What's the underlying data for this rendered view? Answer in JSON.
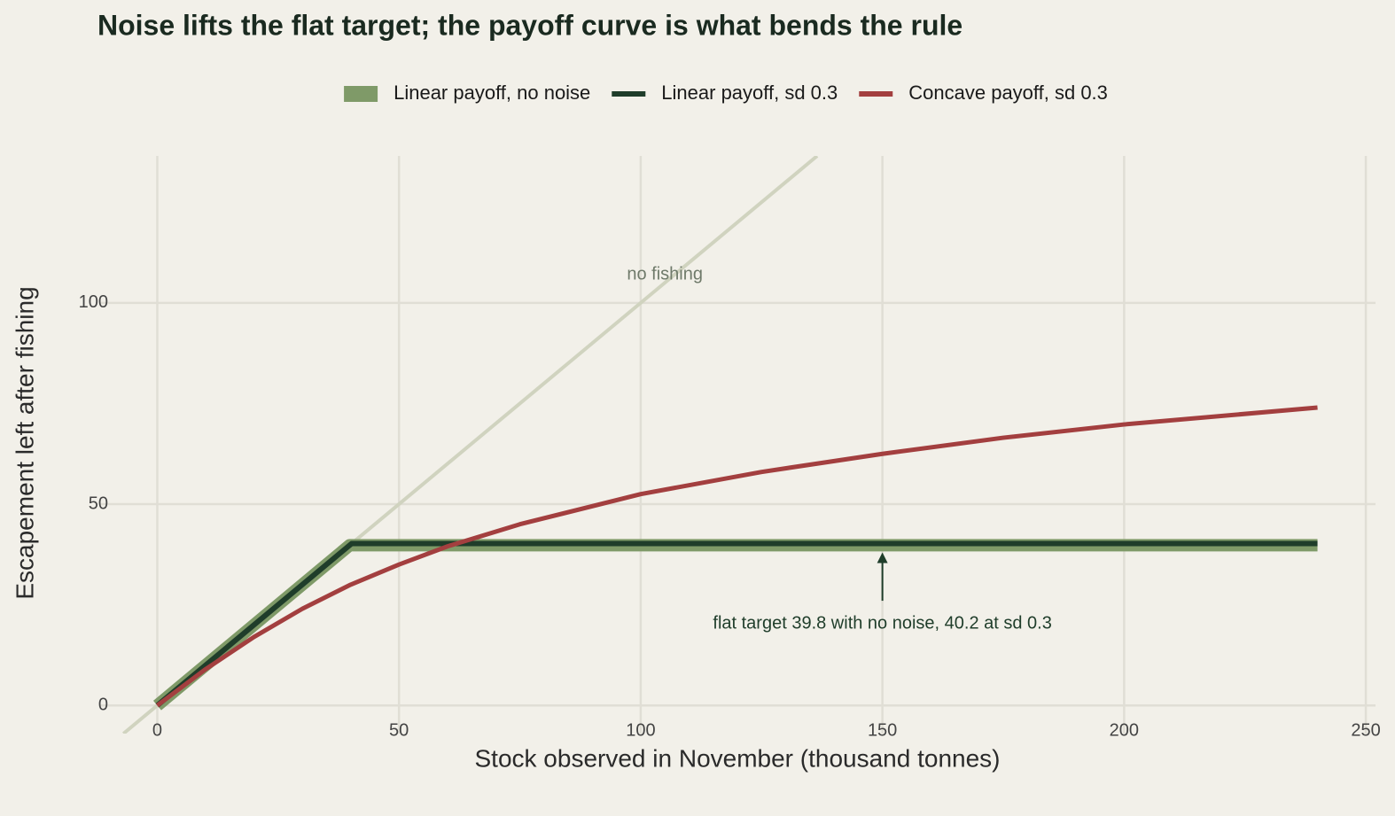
{
  "chart_data": {
    "type": "line",
    "title": "Noise lifts the flat target; the payoff curve is what bends the rule",
    "xlabel": "Stock observed in November (thousand tonnes)",
    "ylabel": "Escapement left after fishing",
    "xlim": [
      -12,
      252
    ],
    "ylim": [
      -7,
      136.5
    ],
    "xticks": [
      0,
      50,
      100,
      150,
      200,
      250
    ],
    "yticks": [
      0,
      50,
      100
    ],
    "grid": true,
    "legend": "top",
    "series": [
      {
        "name": "Linear payoff, no noise",
        "color": "#7f9a68",
        "x": [
          0,
          39.8,
          240
        ],
        "values": [
          0,
          39.8,
          39.8
        ]
      },
      {
        "name": "Linear payoff, sd 0.3",
        "color": "#1f3d2a",
        "x": [
          0,
          40.2,
          240
        ],
        "values": [
          0,
          40.2,
          40.2
        ]
      },
      {
        "name": "Concave payoff, sd 0.3",
        "color": "#a33f3f",
        "x": [
          0,
          10,
          20,
          30,
          40,
          50,
          60,
          75,
          100,
          125,
          150,
          175,
          200,
          240
        ],
        "values": [
          0,
          9,
          17,
          24,
          30,
          35,
          39.5,
          45,
          52.5,
          58,
          62.5,
          66.5,
          69.8,
          74
        ]
      }
    ],
    "reference_line": {
      "label": "no fishing",
      "color": "#d0d3bf",
      "x": [
        -7,
        136.5
      ],
      "values": [
        -7,
        136.5
      ]
    },
    "annotation": {
      "text": "flat target 39.8 with no noise, 40.2 at sd 0.3",
      "x": 150,
      "y_from": 26,
      "y_to": 38
    }
  }
}
